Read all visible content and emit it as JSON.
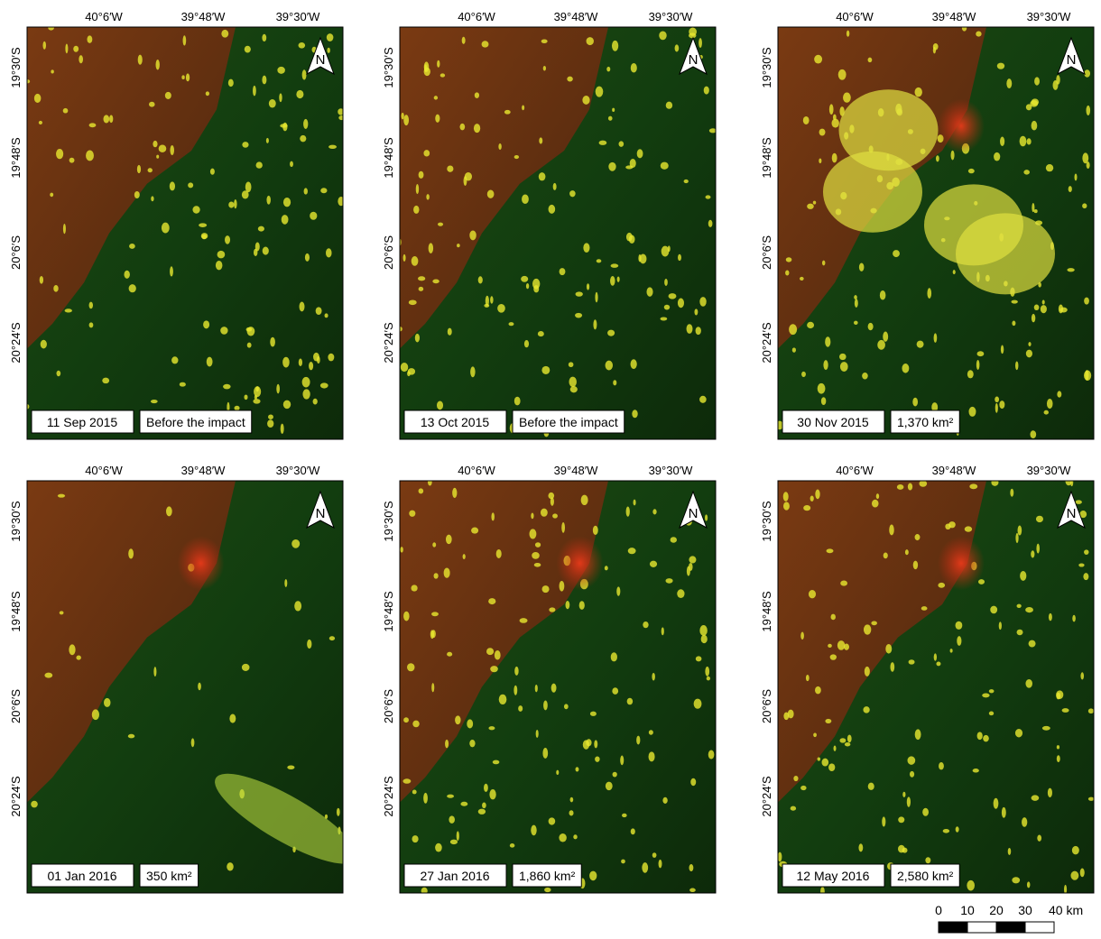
{
  "axis": {
    "longitude": [
      "40°6′W",
      "39°48′W",
      "39°30′W"
    ],
    "latitude": [
      "19°30′S",
      "19°48′S",
      "20°6′S",
      "20°24′S"
    ]
  },
  "north": "N",
  "panels": [
    {
      "date": "11 Sep 2015",
      "note": "Before the impact"
    },
    {
      "date": "13 Oct 2015",
      "note": "Before the impact"
    },
    {
      "date": "30 Nov 2015",
      "note": "1,370 km²"
    },
    {
      "date": "01 Jan 2016",
      "note": "350 km²"
    },
    {
      "date": "27 Jan 2016",
      "note": "1,860 km²"
    },
    {
      "date": "12 May 2016",
      "note": "2,580 km²"
    }
  ],
  "scale_bar": {
    "ticks": [
      "0",
      "10",
      "20",
      "30",
      "40 km"
    ]
  }
}
